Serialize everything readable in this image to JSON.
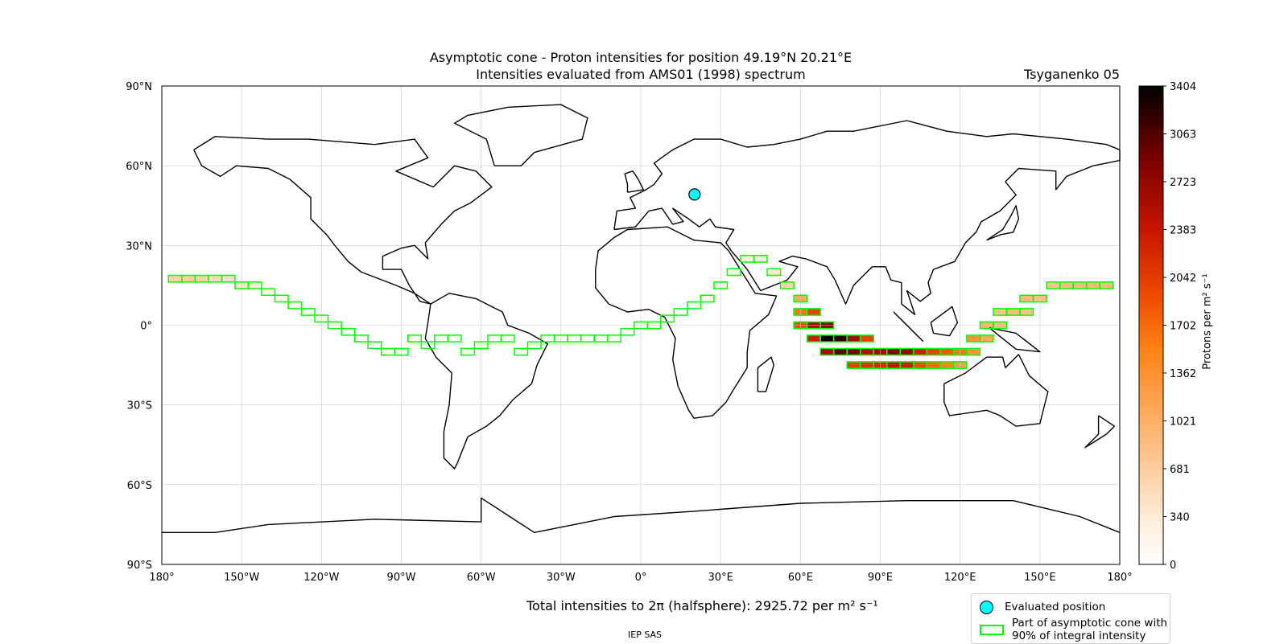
{
  "title_line1": "Asymptotic cone - Proton intensities for position 49.19°N 20.21°E",
  "title_line2": "Intensities evaluated from AMS01 (1998) spectrum",
  "model_label": "Tsyganenko 05",
  "total_text": "Total intensities to 2π (halfsphere): 2925.72 per m² s⁻¹",
  "footer": "IEP SAS",
  "legend": {
    "evaluated": "Evaluated position",
    "cone_line1": "Part of asymptotic cone with",
    "cone_line2": "90% of integral intensity"
  },
  "colors": {
    "marker": "#00ffff",
    "cone_outline": "#00ff00",
    "coast": "#000000",
    "grid": "#c8c8c8"
  },
  "chart_data": {
    "type": "heatmap",
    "projection": "equirectangular",
    "xlim": [
      -180,
      180
    ],
    "ylim": [
      -90,
      90
    ],
    "grid": true,
    "x_ticks": [
      "180°",
      "150°W",
      "120°W",
      "90°W",
      "60°W",
      "30°W",
      "0°",
      "30°E",
      "60°E",
      "90°E",
      "120°E",
      "150°E",
      "180°"
    ],
    "y_ticks": [
      "90°N",
      "60°N",
      "30°N",
      "0°",
      "30°S",
      "60°S",
      "90°S"
    ],
    "colorbar": {
      "label": "Protons per m² s⁻¹",
      "ticks": [
        0,
        340,
        681,
        1021,
        1362,
        1702,
        2042,
        2383,
        2723,
        3063,
        3404
      ],
      "range": [
        0,
        3404
      ],
      "colormap": "gist_heat_r"
    },
    "evaluated_position": {
      "lat": 49.19,
      "lon": 20.21
    },
    "cell_size_deg": 5,
    "cells": [
      [
        -175,
        17.5,
        600
      ],
      [
        -170,
        17.5,
        650
      ],
      [
        -165,
        17.5,
        600
      ],
      [
        -160,
        17.5,
        500
      ],
      [
        -155,
        17.5,
        450
      ],
      [
        -150,
        15,
        400
      ],
      [
        -145,
        15,
        300
      ],
      [
        -140,
        12.5,
        200
      ],
      [
        -135,
        10,
        150
      ],
      [
        -130,
        7.5,
        120
      ],
      [
        -125,
        5,
        100
      ],
      [
        -120,
        2.5,
        90
      ],
      [
        -115,
        0,
        80
      ],
      [
        -110,
        -2.5,
        70
      ],
      [
        -105,
        -5,
        60
      ],
      [
        -100,
        -7.5,
        60
      ],
      [
        -95,
        -10,
        60
      ],
      [
        -90,
        -10,
        60
      ],
      [
        -85,
        -5,
        60
      ],
      [
        -80,
        -7.5,
        60
      ],
      [
        -75,
        -5,
        60
      ],
      [
        -70,
        -5,
        60
      ],
      [
        -65,
        -10,
        60
      ],
      [
        -60,
        -7.5,
        60
      ],
      [
        -55,
        -5,
        60
      ],
      [
        -50,
        -5,
        60
      ],
      [
        -45,
        -10,
        60
      ],
      [
        -40,
        -7.5,
        60
      ],
      [
        -35,
        -5,
        60
      ],
      [
        -30,
        -5,
        60
      ],
      [
        -25,
        -5,
        60
      ],
      [
        -20,
        -5,
        60
      ],
      [
        -15,
        -5,
        60
      ],
      [
        -10,
        -5,
        60
      ],
      [
        -5,
        -2.5,
        70
      ],
      [
        0,
        0,
        70
      ],
      [
        5,
        0,
        80
      ],
      [
        10,
        2.5,
        90
      ],
      [
        15,
        5,
        100
      ],
      [
        20,
        7.5,
        100
      ],
      [
        25,
        10,
        120
      ],
      [
        30,
        15,
        150
      ],
      [
        35,
        20,
        200
      ],
      [
        40,
        25,
        250
      ],
      [
        45,
        25,
        300
      ],
      [
        50,
        20,
        350
      ],
      [
        55,
        15,
        600
      ],
      [
        60,
        10,
        1100
      ],
      [
        60,
        5,
        1600
      ],
      [
        60,
        0,
        1900
      ],
      [
        65,
        5,
        2000
      ],
      [
        65,
        0,
        2600
      ],
      [
        65,
        -5,
        2300
      ],
      [
        70,
        0,
        2800
      ],
      [
        70,
        -5,
        3400
      ],
      [
        70,
        -10,
        2600
      ],
      [
        75,
        -5,
        3200
      ],
      [
        75,
        -10,
        3000
      ],
      [
        80,
        -5,
        2600
      ],
      [
        80,
        -10,
        2900
      ],
      [
        80,
        -15,
        2000
      ],
      [
        85,
        -5,
        2000
      ],
      [
        85,
        -10,
        2500
      ],
      [
        85,
        -15,
        2100
      ],
      [
        90,
        -10,
        2600
      ],
      [
        90,
        -15,
        2200
      ],
      [
        95,
        -10,
        2800
      ],
      [
        95,
        -15,
        2400
      ],
      [
        100,
        -10,
        2700
      ],
      [
        100,
        -15,
        2300
      ],
      [
        105,
        -10,
        2300
      ],
      [
        105,
        -15,
        1900
      ],
      [
        110,
        -10,
        2000
      ],
      [
        110,
        -15,
        1700
      ],
      [
        115,
        -10,
        1800
      ],
      [
        115,
        -15,
        1500
      ],
      [
        120,
        -10,
        1600
      ],
      [
        120,
        -15,
        1200
      ],
      [
        125,
        -5,
        1300
      ],
      [
        125,
        -10,
        1300
      ],
      [
        130,
        -5,
        1100
      ],
      [
        130,
        0,
        1000
      ],
      [
        135,
        0,
        900
      ],
      [
        135,
        5,
        800
      ],
      [
        140,
        5,
        900
      ],
      [
        145,
        5,
        800
      ],
      [
        145,
        10,
        900
      ],
      [
        150,
        10,
        800
      ],
      [
        155,
        15,
        800
      ],
      [
        160,
        15,
        900
      ],
      [
        165,
        15,
        900
      ],
      [
        170,
        15,
        900
      ],
      [
        175,
        15,
        900
      ]
    ]
  }
}
